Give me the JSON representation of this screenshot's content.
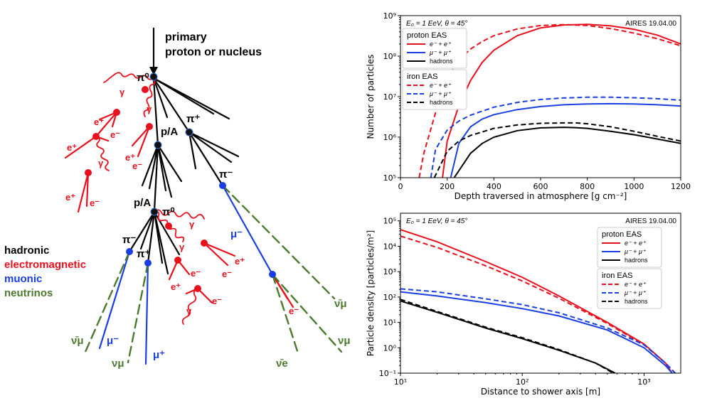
{
  "diagram": {
    "primary_line1": "primary",
    "primary_line2": "proton or nucleus",
    "legend": {
      "hadronic": "hadronic",
      "electromagnetic": "electromagnetic",
      "muonic": "muonic",
      "neutrinos": "neutrinos"
    },
    "colors": {
      "hadronic": "#000000",
      "electromagnetic": "#e8101c",
      "muonic": "#1a3fe0",
      "neutrinos": "#4b7a2e"
    },
    "labels": {
      "pi0_top": "π⁰",
      "pi_plus_top": "π⁺",
      "pA_1": "p/A",
      "pA_2": "p/A",
      "pi0_mid": "π⁰",
      "pi_minus_right": "π⁻",
      "pi_minus_left": "π⁻",
      "pi_plus_left": "π⁺",
      "mu_minus_right": "μ⁻",
      "mu_minus_left": "μ⁻",
      "mu_plus_left": "μ⁺",
      "nu_mu_bar_left": "ν̄μ",
      "nu_mu_left": "νμ",
      "nu_mu_bar_right": "ν̄μ",
      "nu_mu_right": "νμ",
      "nu_e_bar_right": "ν̄e",
      "e_minus_far_right": "e⁻",
      "g1": "γ",
      "g2": "γ",
      "g3": "γ",
      "g4": "γ",
      "g5": "γ",
      "g6": "γ",
      "ep1": "e⁺",
      "ep2": "e⁺",
      "ep3": "e⁺",
      "ep4": "e⁺",
      "ep5": "e⁺",
      "ep6": "e⁺",
      "em1": "e⁻",
      "em2": "e⁻",
      "em3": "e⁻",
      "em4": "e⁻",
      "em5": "e⁻",
      "em6": "e⁻"
    }
  },
  "chart_data": [
    {
      "type": "line",
      "title_left": "E₀ = 1 EeV, θ = 45°",
      "title_right": "AIRES 19.04.00",
      "xlabel": "Depth traversed in atmosphere [g cm⁻²]",
      "ylabel": "Number of particles",
      "xlim": [
        0,
        1200
      ],
      "ylim": [
        100000,
        1000000000
      ],
      "yscale": "log",
      "xticks": [
        "0",
        "200",
        "400",
        "600",
        "800",
        "1000",
        "1200"
      ],
      "yticks": [
        "10⁵",
        "10⁶",
        "10⁷",
        "10⁸",
        "10⁹"
      ],
      "legend": [
        {
          "title": "proton EAS",
          "entries": [
            "e⁻ + e⁺",
            "μ⁻ + μ⁺",
            "hadrons"
          ]
        },
        {
          "title": "iron EAS",
          "entries": [
            "e⁻ + e⁺",
            "μ⁻ + μ⁺",
            "hadrons"
          ]
        }
      ],
      "series": [
        {
          "name": "proton e",
          "color": "#e8101c",
          "dash": false,
          "x": [
            180,
            200,
            250,
            300,
            350,
            400,
            500,
            600,
            700,
            800,
            900,
            1000,
            1100,
            1200
          ],
          "y": [
            100000,
            800000,
            6000000,
            25000000,
            70000000,
            140000000,
            320000000,
            500000000,
            590000000,
            610000000,
            560000000,
            460000000,
            330000000,
            200000000
          ]
        },
        {
          "name": "proton mu",
          "color": "#1a3fe0",
          "dash": false,
          "x": [
            215,
            250,
            300,
            350,
            400,
            500,
            600,
            700,
            800,
            900,
            1000,
            1100,
            1200
          ],
          "y": [
            100000,
            700000,
            1800000,
            2800000,
            3600000,
            4800000,
            5700000,
            6300000,
            6600000,
            6700000,
            6600000,
            6300000,
            5900000
          ]
        },
        {
          "name": "proton hadrons",
          "color": "#000000",
          "dash": false,
          "x": [
            230,
            300,
            350,
            400,
            500,
            600,
            700,
            750,
            800,
            900,
            1000,
            1100,
            1200
          ],
          "y": [
            100000,
            400000,
            700000,
            1000000,
            1450000,
            1700000,
            1750000,
            1720000,
            1650000,
            1400000,
            1150000,
            900000,
            700000
          ]
        },
        {
          "name": "iron e",
          "color": "#e8101c",
          "dash": true,
          "x": [
            80,
            100,
            150,
            200,
            250,
            300,
            350,
            400,
            500,
            600,
            700,
            800,
            900,
            1000,
            1100,
            1200
          ],
          "y": [
            100000,
            400000,
            4000000,
            28000000,
            80000000,
            150000000,
            230000000,
            320000000,
            470000000,
            570000000,
            600000000,
            570000000,
            480000000,
            370000000,
            270000000,
            180000000
          ]
        },
        {
          "name": "iron mu",
          "color": "#1a3fe0",
          "dash": true,
          "x": [
            130,
            150,
            200,
            250,
            300,
            400,
            500,
            600,
            700,
            800,
            900,
            1000,
            1100,
            1200
          ],
          "y": [
            100000,
            500000,
            1500000,
            2500000,
            3500000,
            5500000,
            7200000,
            8500000,
            9300000,
            9700000,
            9700000,
            9400000,
            8900000,
            8200000
          ]
        },
        {
          "name": "iron hadrons",
          "color": "#000000",
          "dash": true,
          "x": [
            145,
            200,
            250,
            300,
            400,
            500,
            600,
            700,
            750,
            800,
            900,
            1000,
            1100,
            1200
          ],
          "y": [
            100000,
            450000,
            800000,
            1100000,
            1650000,
            2000000,
            2200000,
            2250000,
            2250000,
            2150000,
            1800000,
            1400000,
            1050000,
            800000
          ]
        }
      ]
    },
    {
      "type": "line",
      "title_left": "E₀ = 1 EeV, θ = 45°",
      "title_right": "AIRES 19.04.00",
      "xlabel": "Distance to shower axis [m]",
      "ylabel": "Particle density [particles/m²]",
      "xlim": [
        10,
        2000
      ],
      "ylim": [
        0.1,
        200000
      ],
      "xscale": "log",
      "yscale": "log",
      "xticks": [
        "10¹",
        "10²",
        "10³"
      ],
      "yticks": [
        "10⁻¹",
        "10⁰",
        "10¹",
        "10²",
        "10³",
        "10⁴",
        "10⁵"
      ],
      "legend": [
        {
          "title": "proton EAS",
          "entries": [
            "e⁻ + e⁺",
            "μ⁻ + μ⁺",
            "hadrons"
          ]
        },
        {
          "title": "iron EAS",
          "entries": [
            "e⁻ + e⁺",
            "μ⁻ + μ⁺",
            "hadrons"
          ]
        }
      ],
      "series": [
        {
          "name": "proton e",
          "color": "#e8101c",
          "dash": false,
          "x": [
            10,
            20,
            50,
            100,
            200,
            500,
            1000,
            1500,
            1700
          ],
          "y": [
            45000,
            15000,
            2500,
            600,
            110,
            10,
            1.4,
            0.25,
            0.1
          ]
        },
        {
          "name": "proton mu",
          "color": "#1a3fe0",
          "dash": false,
          "x": [
            10,
            20,
            50,
            100,
            200,
            500,
            1000,
            1500,
            1700
          ],
          "y": [
            160,
            110,
            60,
            35,
            18,
            5,
            1,
            0.2,
            0.1
          ]
        },
        {
          "name": "proton hadrons",
          "color": "#000000",
          "dash": false,
          "x": [
            10,
            20,
            50,
            100,
            200,
            400,
            580
          ],
          "y": [
            70,
            25,
            6,
            2.3,
            0.8,
            0.25,
            0.1
          ]
        },
        {
          "name": "iron e",
          "color": "#e8101c",
          "dash": true,
          "x": [
            10,
            20,
            50,
            100,
            200,
            500,
            1000,
            1500,
            1800
          ],
          "y": [
            25000,
            9000,
            1700,
            430,
            90,
            9,
            1.3,
            0.25,
            0.1
          ]
        },
        {
          "name": "iron mu",
          "color": "#1a3fe0",
          "dash": true,
          "x": [
            10,
            20,
            50,
            100,
            200,
            500,
            1000,
            1500,
            1800
          ],
          "y": [
            210,
            160,
            85,
            50,
            24,
            6,
            1.3,
            0.25,
            0.1
          ]
        },
        {
          "name": "iron hadrons",
          "color": "#000000",
          "dash": true,
          "x": [
            10,
            20,
            50,
            100,
            200,
            400,
            560
          ],
          "y": [
            80,
            27,
            6.5,
            2.5,
            0.85,
            0.25,
            0.1
          ]
        }
      ]
    }
  ]
}
